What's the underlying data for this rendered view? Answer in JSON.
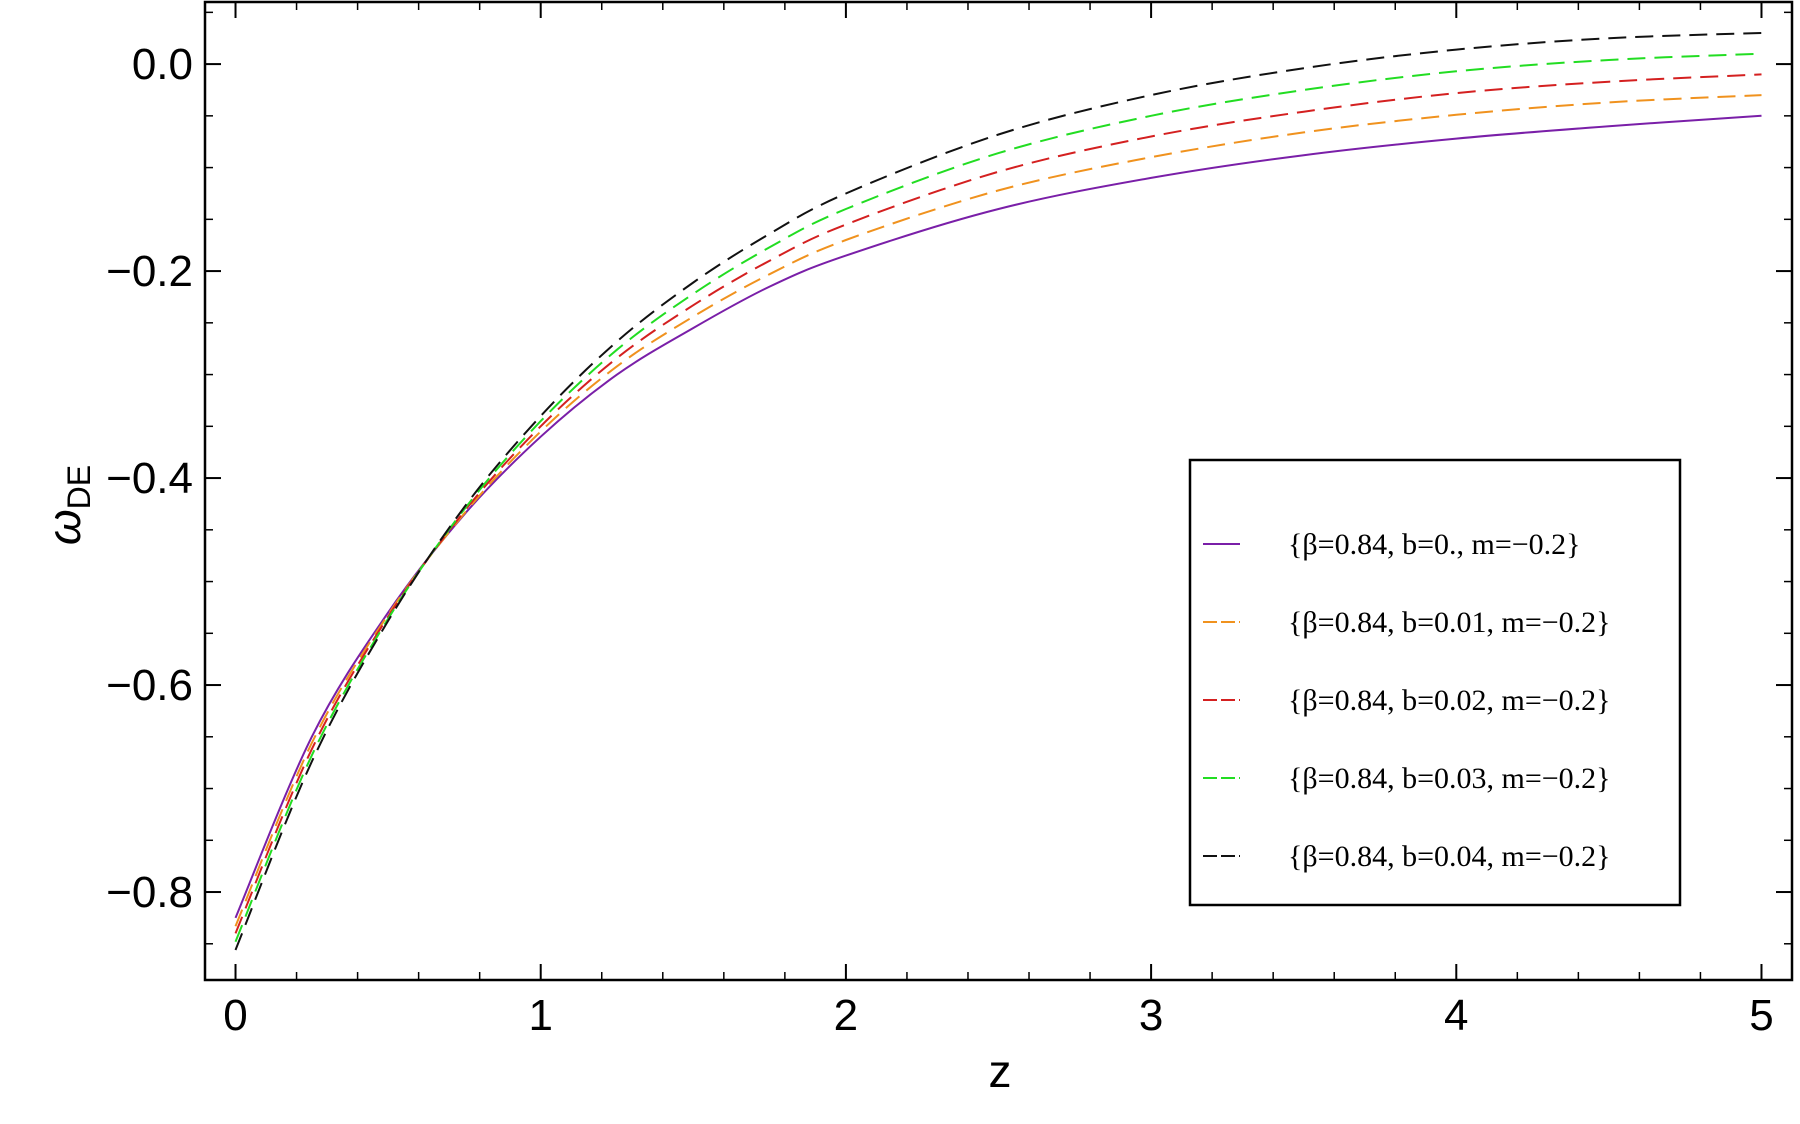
{
  "chart_data": {
    "type": "line",
    "title": "",
    "xlabel": "z",
    "ylabel": "ω",
    "ylabel_sub": "DE",
    "xlim": [
      -0.1,
      5.1
    ],
    "ylim": [
      -0.885,
      0.06
    ],
    "xticks": [
      0,
      1,
      2,
      3,
      4,
      5
    ],
    "xtick_labels": [
      "0",
      "1",
      "2",
      "3",
      "4",
      "5"
    ],
    "yticks": [
      0.0,
      -0.2,
      -0.4,
      -0.6,
      -0.8
    ],
    "ytick_labels": [
      "0.0",
      "−0.2",
      "−0.4",
      "−0.6",
      "−0.8"
    ],
    "grid": false,
    "legend_position": "right",
    "x": [
      0,
      0.25,
      0.5,
      0.75,
      1.0,
      1.25,
      1.5,
      1.75,
      2.0,
      2.5,
      3.0,
      3.5,
      4.0,
      4.5,
      5.0
    ],
    "series": [
      {
        "name": "{β=0.84, b=0., m=−0.2}",
        "color": "#7a1fa8",
        "dash": "solid",
        "values": [
          -0.825,
          -0.65,
          -0.53,
          -0.435,
          -0.36,
          -0.3,
          -0.255,
          -0.215,
          -0.185,
          -0.14,
          -0.11,
          -0.088,
          -0.072,
          -0.06,
          -0.05
        ]
      },
      {
        "name": "{β=0.84, b=0.01, m=−0.2}",
        "color": "#f0921e",
        "dash": "dashed",
        "values": [
          -0.833,
          -0.656,
          -0.532,
          -0.434,
          -0.355,
          -0.292,
          -0.244,
          -0.203,
          -0.17,
          -0.122,
          -0.09,
          -0.066,
          -0.049,
          -0.037,
          -0.03
        ]
      },
      {
        "name": "{β=0.84, b=0.02, m=−0.2}",
        "color": "#d42020",
        "dash": "dashed",
        "values": [
          -0.84,
          -0.662,
          -0.534,
          -0.432,
          -0.35,
          -0.284,
          -0.233,
          -0.19,
          -0.155,
          -0.104,
          -0.07,
          -0.046,
          -0.028,
          -0.017,
          -0.01
        ]
      },
      {
        "name": "{β=0.84, b=0.03, m=−0.2}",
        "color": "#22dd22",
        "dash": "dashed",
        "values": [
          -0.848,
          -0.668,
          -0.536,
          -0.43,
          -0.345,
          -0.276,
          -0.222,
          -0.177,
          -0.14,
          -0.086,
          -0.05,
          -0.025,
          -0.007,
          0.004,
          0.01
        ]
      },
      {
        "name": "{β=0.84, b=0.04, m=−0.2}",
        "color": "#111111",
        "dash": "dashed",
        "values": [
          -0.856,
          -0.674,
          -0.538,
          -0.428,
          -0.34,
          -0.268,
          -0.211,
          -0.164,
          -0.125,
          -0.068,
          -0.03,
          -0.004,
          0.014,
          0.025,
          0.03
        ]
      }
    ]
  }
}
